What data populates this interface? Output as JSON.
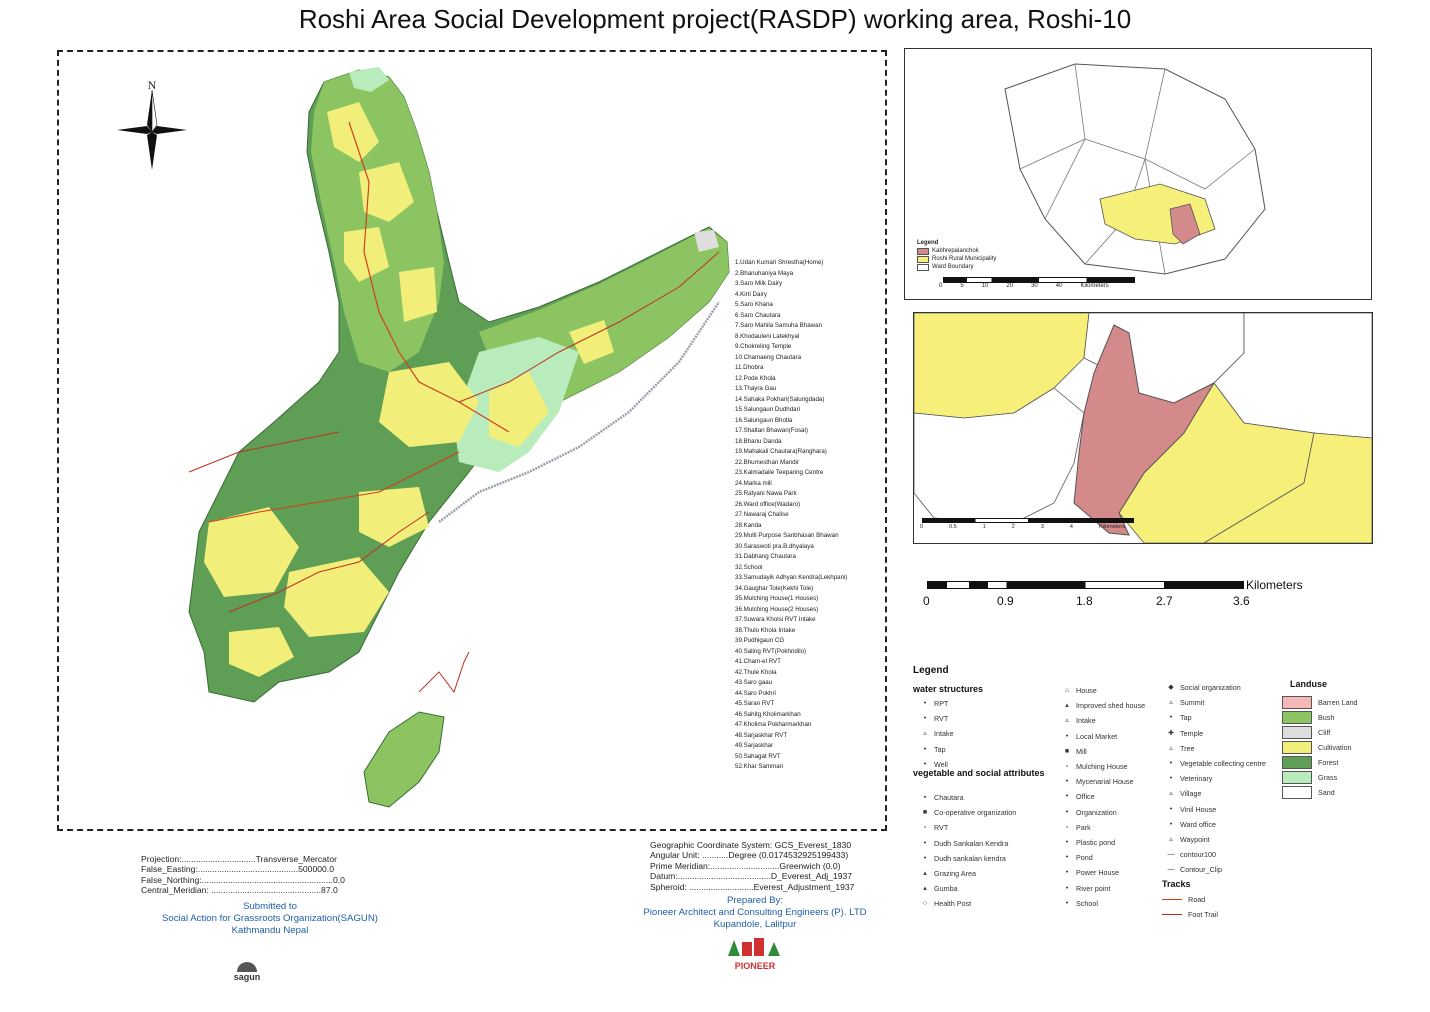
{
  "title": "Roshi Area Social Development project(RASDP) working area, Roshi-10",
  "north_label": "N",
  "place_list": [
    "1.Udan Kumari Shrestha(Home)",
    "2.Bhanuhaniya Maya",
    "3.Saro Milk Dairy",
    "4.Kirti Dairy",
    "5.Saro Khana",
    "6.Saro Chautara",
    "7.Saro Mahila Samuha Bhawan",
    "8.Khodauleni Latekhyal",
    "9.Chokreling Temple",
    "10.Chamaeng Chautara",
    "11.Dhobra",
    "12.Pode Khola",
    "13.Thayra Gau",
    "14.Sahaka Pokhari(Salungdada)",
    "15.Salungaun Dudhdari",
    "16.Salungaun Bhotla",
    "17.Shaltan Bhawan(Fosal)",
    "18.Bhanu Danda",
    "19.Mahakali Chautara(Ranghara)",
    "22.Bhumesthan Mandir",
    "23.Kalmadaile Teeparing Centre",
    "24.Marka mill",
    "25.Ratyani Nawa Park",
    "26.Ward office(Wadaro)",
    "27.Nawaraj Chalise",
    "28.Kanda",
    "29.Multi Purpose Sanbhasan Bhawan",
    "30.Saraswoti pra.B.dhyalaya",
    "31.Dabhang Chautara",
    "32.School",
    "33.Samudayik Adhyan Kendra(Lekhpani)",
    "34.Gaughar Tole(Kekhi Tole)",
    "35.Mulching House(1 Houses)",
    "36.Mulching House(2 Houses)",
    "37.Suwara Kholsi RVT Intake",
    "38.Thulo Khola Intake",
    "39.Pudhigaun CG",
    "40.Saling RVT(Pokhridilo)",
    "41.Cham-el RVT",
    "42.Thule Khola",
    "43.Saro gaau",
    "44.Saro Pokhri",
    "45.Saran RVT",
    "46.Sahitg Kholimarkhan",
    "47.Kholima Pokharmarkhan",
    "48.Sarjaskhar RVT",
    "49.Sarjaskhar",
    "50.Sahagat RVT",
    "52.Khar Samman"
  ],
  "scalebar": {
    "ticks": [
      "0",
      "0.9",
      "1.8",
      "2.7",
      "3.6"
    ],
    "unit": "Kilometers"
  },
  "inset1_legend": {
    "title": "Legend",
    "items": [
      "Kabhrepalanchok",
      "Roshi Rural Municipality",
      "Ward Boundary"
    ],
    "ticks": [
      "0",
      "5",
      "10",
      "20",
      "30",
      "40"
    ],
    "unit": "Kilometers"
  },
  "inset2_scale": {
    "ticks": [
      "0",
      "0.5",
      "1",
      "2",
      "3",
      "4"
    ],
    "unit": "Kilometers"
  },
  "legend": {
    "title": "Legend",
    "water_title": "water structures",
    "water": [
      {
        "sym": "•",
        "label": "RPT"
      },
      {
        "sym": "•",
        "label": "RVT"
      },
      {
        "sym": "▵",
        "label": "Intake"
      },
      {
        "sym": "•",
        "label": "Tap"
      },
      {
        "sym": "•",
        "label": "Well"
      }
    ],
    "social_title": "vegetable and social attributes",
    "social": [
      {
        "sym": "▪",
        "label": "Chautara"
      },
      {
        "sym": "■",
        "label": "Co-operative organization"
      },
      {
        "sym": "▫",
        "label": "RVT"
      },
      {
        "sym": "•",
        "label": "Dudh Sankalan Kendra"
      },
      {
        "sym": "•",
        "label": "Dudh sankalan kendra"
      },
      {
        "sym": "▴",
        "label": "Grazing Area"
      },
      {
        "sym": "▴",
        "label": "Gumba"
      },
      {
        "sym": "○",
        "label": "Health Post"
      }
    ],
    "col2": [
      {
        "sym": "⌂",
        "label": "House"
      },
      {
        "sym": "▴",
        "label": "Improved shed house"
      },
      {
        "sym": "▵",
        "label": "Intake"
      },
      {
        "sym": "•",
        "label": "Local Market"
      },
      {
        "sym": "■",
        "label": "Mill"
      },
      {
        "sym": "▫",
        "label": "Mulching House"
      },
      {
        "sym": "•",
        "label": "Mycenarial House"
      },
      {
        "sym": "•",
        "label": "Office"
      },
      {
        "sym": "•",
        "label": "Organization"
      },
      {
        "sym": "▫",
        "label": "Park"
      },
      {
        "sym": "•",
        "label": "Plastic pond"
      },
      {
        "sym": "•",
        "label": "Pond"
      },
      {
        "sym": "•",
        "label": "Power House"
      },
      {
        "sym": "•",
        "label": "River point"
      },
      {
        "sym": "•",
        "label": "School"
      }
    ],
    "col3": [
      {
        "sym": "◆",
        "label": "Social organization"
      },
      {
        "sym": "▵",
        "label": "Summit"
      },
      {
        "sym": "•",
        "label": "Tap"
      },
      {
        "sym": "✚",
        "label": "Temple"
      },
      {
        "sym": "▵",
        "label": "Tree"
      },
      {
        "sym": "•",
        "label": "Vegetable collecting centre"
      },
      {
        "sym": "•",
        "label": "Veterinary"
      },
      {
        "sym": "▵",
        "label": "Village"
      },
      {
        "sym": "•",
        "label": "Vinil House"
      },
      {
        "sym": "•",
        "label": "Ward office"
      },
      {
        "sym": "▵",
        "label": "Waypoint"
      },
      {
        "sym": "—",
        "label": "contour100"
      },
      {
        "sym": "—",
        "label": "Contour_Clip"
      }
    ],
    "tracks_title": "Tracks",
    "tracks": [
      {
        "color": "#d04020",
        "label": "Road"
      },
      {
        "color": "#a03020",
        "label": "Foot Trail"
      }
    ],
    "landuse_title": "Landuse",
    "landuse": [
      {
        "color": "#f4b8b8",
        "label": "Barren Land"
      },
      {
        "color": "#8cc462",
        "label": "Bush"
      },
      {
        "color": "#dedede",
        "label": "Cliff"
      },
      {
        "color": "#f2ee7a",
        "label": "Cultivation"
      },
      {
        "color": "#5e9e55",
        "label": "Forest"
      },
      {
        "color": "#b9ecbc",
        "label": "Grass"
      },
      {
        "color": "#ffffff",
        "label": "Sand"
      }
    ]
  },
  "projection": {
    "lines": [
      "Projection:...............................Transverse_Mercator",
      "False_Easting:..........................................500000.0",
      "False_Northing:.......................................................0.0",
      "Central_Meridian: ..............................................87.0"
    ]
  },
  "submitted": {
    "line1": "Submitted to",
    "line2": "Social Action for Grassroots Organization(SAGUN)",
    "line3": "Kathmandu Nepal",
    "logo_text": "sagun"
  },
  "coordinate_system": {
    "lines": [
      "Geographic Coordinate System: GCS_Everest_1830",
      "Angular Unit: ...........Degree (0.0174532925199433)",
      "Prime Meridian:.............................Greenwich (0.0)",
      "Datum:.......................................D_Everest_Adj_1937",
      "Spheroid: ...........................Everest_Adjustment_1937"
    ]
  },
  "prepared": {
    "line1": "Prepared By:",
    "line2": "Pioneer Architect and Consulting Engineers (P). LTD",
    "line3": "Kupandole, Lalitpur",
    "logo_text": "PIONEER"
  },
  "colors": {
    "forest": "#5e9e55",
    "bush": "#8cc462",
    "cultivation": "#f2ee7a",
    "grass": "#b9ecbc",
    "barren": "#f4b8b8",
    "inset_highlight": "#d48a8a",
    "inset_yellow": "#f6f07a",
    "road": "#d04020",
    "blue_text": "#1f5fa8"
  }
}
